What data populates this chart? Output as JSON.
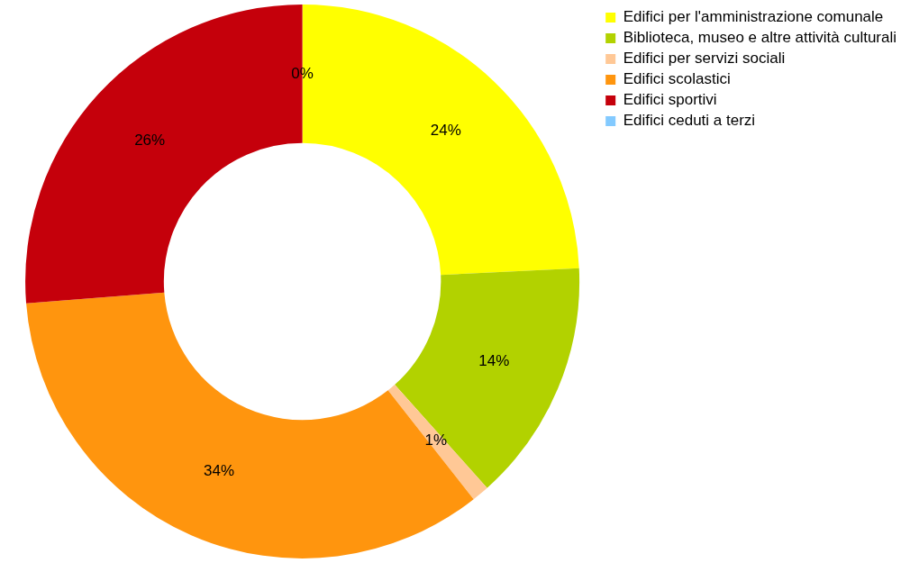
{
  "chart_data": {
    "type": "donut",
    "categories": [
      "Edifici per l'amministrazione comunale",
      "Biblioteca, museo e altre attività culturali",
      "Edifici per servizi sociali",
      "Edifici scolastici",
      "Edifici sportivi",
      "Edifici ceduti a terzi"
    ],
    "values": [
      24,
      14,
      1,
      34,
      26,
      0
    ],
    "colors": [
      "#ffff00",
      "#b2d200",
      "#ffc896",
      "#ff950e",
      "#c5000b",
      "#83caff"
    ],
    "value_labels": [
      "24%",
      "14%",
      "1%",
      "34%",
      "26%",
      "0%"
    ],
    "legend": "right"
  }
}
